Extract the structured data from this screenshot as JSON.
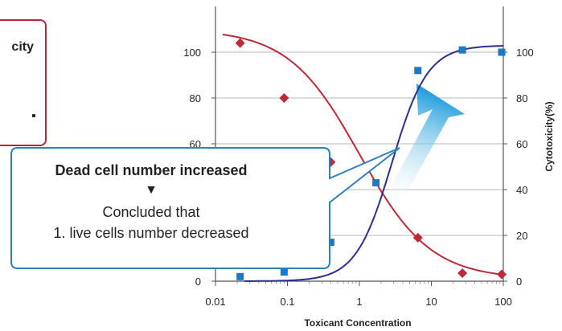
{
  "chart_data": {
    "type": "line",
    "xscale": "log",
    "xlim": [
      0.01,
      100
    ],
    "ylim": [
      0,
      110
    ],
    "xlabel": "Toxicant Concentration",
    "y2label": "Cytotoxicity(%)",
    "x_ticks": [
      "0.01",
      "0.1",
      "1",
      "10",
      "100"
    ],
    "y_ticks": [
      "0",
      "20",
      "40",
      "60",
      "80",
      "100"
    ],
    "grid": "horizontal",
    "series": [
      {
        "marker": "diamond",
        "color": "#c0283a",
        "axis": "left",
        "points": [
          [
            0.022,
            104
          ],
          [
            0.09,
            80
          ],
          [
            0.4,
            52
          ],
          [
            6.5,
            19
          ],
          [
            27,
            3.5
          ],
          [
            95,
            3
          ]
        ]
      },
      {
        "marker": "square",
        "color": "#1e78c2",
        "line_color": "#2d2e8f",
        "axis": "right",
        "points": [
          [
            0.022,
            2
          ],
          [
            0.09,
            4
          ],
          [
            0.4,
            17
          ],
          [
            1.7,
            43
          ],
          [
            6.5,
            92
          ],
          [
            27,
            101
          ],
          [
            95,
            100
          ]
        ]
      }
    ]
  },
  "legend_box": {
    "text": "city"
  },
  "callout": {
    "heading": "Dead cell number increased",
    "arrow": "▼",
    "line1": "Concluded that",
    "line2": "1. live cells number decreased"
  },
  "colors": {
    "grid": "#b8b8b8",
    "callout_border": "#2d7fbf",
    "arrow_gradient_start": "#27a0dc",
    "arrow_gradient_end": "#ffffff"
  }
}
